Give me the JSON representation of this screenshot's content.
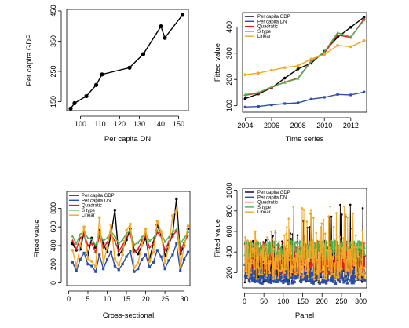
{
  "chart_data": [
    {
      "type": "line",
      "xlabel": "Per capita DN",
      "ylabel": "Per capita GDP",
      "xlim": [
        93,
        155
      ],
      "ylim": [
        120,
        455
      ],
      "xticks": [
        100,
        110,
        120,
        130,
        140,
        150
      ],
      "yticks": [
        150,
        250,
        350,
        450
      ],
      "grid": false,
      "series": [
        {
          "color": "#000000",
          "x": [
            95,
            97,
            103,
            108,
            111,
            125,
            132,
            141,
            143,
            152
          ],
          "y": [
            127,
            145,
            168,
            205,
            240,
            262,
            307,
            399,
            361,
            437
          ]
        }
      ]
    },
    {
      "type": "line",
      "xlabel": "Time series",
      "ylabel": "Fitted value",
      "xlim": [
        2003.8,
        2013.2
      ],
      "ylim": [
        75,
        455
      ],
      "xticks": [
        2004,
        2006,
        2008,
        2010,
        2012
      ],
      "yticks": [
        100,
        200,
        300,
        400
      ],
      "grid": false,
      "legend": "top-left",
      "series": [
        {
          "name": "Per capita GDP",
          "color": "#000000",
          "x": [
            2004,
            2005,
            2006,
            2007,
            2008,
            2009,
            2010,
            2011,
            2012,
            2013
          ],
          "y": [
            127,
            145,
            168,
            205,
            240,
            262,
            307,
            361,
            399,
            437
          ]
        },
        {
          "name": "Per capita DN",
          "color": "#2b4ea6",
          "x": [
            2004,
            2005,
            2006,
            2007,
            2008,
            2009,
            2010,
            2011,
            2012,
            2013
          ],
          "y": [
            95,
            97,
            103,
            108,
            111,
            125,
            132,
            143,
            141,
            152
          ]
        },
        {
          "name": "Quadratic",
          "color": "#e41a1c",
          "x": [
            2004,
            2005,
            2006,
            2007,
            2008,
            2009,
            2010,
            2011,
            2012,
            2013
          ],
          "y": [
            140,
            148,
            170,
            190,
            205,
            270,
            300,
            370,
            360,
            430
          ]
        },
        {
          "name": "S type",
          "color": "#4daf4a",
          "x": [
            2004,
            2005,
            2006,
            2007,
            2008,
            2009,
            2010,
            2011,
            2012,
            2013
          ],
          "y": [
            142,
            150,
            172,
            188,
            203,
            268,
            305,
            378,
            362,
            425
          ]
        },
        {
          "name": "Linear",
          "color": "#f5a623",
          "x": [
            2004,
            2005,
            2006,
            2007,
            2008,
            2009,
            2010,
            2011,
            2012,
            2013
          ],
          "y": [
            218,
            224,
            235,
            245,
            252,
            278,
            295,
            330,
            325,
            348
          ]
        }
      ]
    },
    {
      "type": "line",
      "xlabel": "Cross-sectional",
      "ylabel": "Fitted value",
      "xlim": [
        -0.5,
        31.5
      ],
      "ylim": [
        -30,
        980
      ],
      "xticks": [
        0,
        5,
        10,
        15,
        20,
        25,
        30
      ],
      "yticks": [
        0,
        200,
        400,
        600,
        800
      ],
      "grid": false,
      "legend": "top-left",
      "series": [
        {
          "name": "Per capita GDP",
          "color": "#000000",
          "x": [
            1,
            2,
            3,
            4,
            5,
            6,
            7,
            8,
            9,
            10,
            11,
            12,
            13,
            14,
            15,
            16,
            17,
            18,
            19,
            20,
            21,
            22,
            23,
            24,
            25,
            26,
            27,
            28,
            29,
            30,
            31
          ],
          "y": [
            420,
            350,
            360,
            540,
            300,
            480,
            380,
            560,
            420,
            330,
            510,
            780,
            300,
            350,
            460,
            580,
            350,
            310,
            400,
            480,
            250,
            430,
            620,
            510,
            290,
            410,
            520,
            900,
            310,
            400,
            580
          ]
        },
        {
          "name": "Per capita DN",
          "color": "#2b4ea6",
          "x": [
            1,
            2,
            3,
            4,
            5,
            6,
            7,
            8,
            9,
            10,
            11,
            12,
            13,
            14,
            15,
            16,
            17,
            18,
            19,
            20,
            21,
            22,
            23,
            24,
            25,
            26,
            27,
            28,
            29,
            30,
            31
          ],
          "y": [
            220,
            130,
            250,
            320,
            200,
            180,
            120,
            300,
            150,
            250,
            330,
            180,
            140,
            200,
            280,
            340,
            120,
            150,
            250,
            300,
            170,
            220,
            350,
            280,
            150,
            240,
            300,
            420,
            130,
            250,
            330
          ]
        },
        {
          "name": "Quadratic",
          "color": "#e41a1c",
          "x": [
            1,
            2,
            3,
            4,
            5,
            6,
            7,
            8,
            9,
            10,
            11,
            12,
            13,
            14,
            15,
            16,
            17,
            18,
            19,
            20,
            21,
            22,
            23,
            24,
            25,
            26,
            27,
            28,
            29,
            30,
            31
          ],
          "y": [
            450,
            360,
            480,
            520,
            400,
            420,
            330,
            500,
            380,
            430,
            520,
            450,
            340,
            400,
            490,
            530,
            330,
            360,
            450,
            500,
            380,
            420,
            540,
            500,
            350,
            440,
            500,
            560,
            340,
            430,
            510
          ]
        },
        {
          "name": "S type",
          "color": "#4daf4a",
          "x": [
            1,
            2,
            3,
            4,
            5,
            6,
            7,
            8,
            9,
            10,
            11,
            12,
            13,
            14,
            15,
            16,
            17,
            18,
            19,
            20,
            21,
            22,
            23,
            24,
            25,
            26,
            27,
            28,
            29,
            30,
            31
          ],
          "y": [
            500,
            420,
            520,
            550,
            480,
            470,
            400,
            540,
            450,
            480,
            550,
            500,
            420,
            460,
            530,
            555,
            410,
            430,
            490,
            530,
            450,
            480,
            560,
            540,
            440,
            490,
            540,
            575,
            420,
            480,
            545
          ]
        },
        {
          "name": "Linear",
          "color": "#f5a623",
          "x": [
            1,
            2,
            3,
            4,
            5,
            6,
            7,
            8,
            9,
            10,
            11,
            12,
            13,
            14,
            15,
            16,
            17,
            18,
            19,
            20,
            21,
            22,
            23,
            24,
            25,
            26,
            27,
            28,
            29,
            30,
            31
          ],
          "y": [
            350,
            180,
            400,
            600,
            260,
            230,
            170,
            700,
            210,
            380,
            620,
            260,
            190,
            300,
            560,
            630,
            160,
            210,
            400,
            580,
            230,
            330,
            660,
            550,
            210,
            380,
            720,
            780,
            170,
            390,
            610
          ]
        }
      ]
    },
    {
      "type": "line",
      "xlabel": "Panel",
      "ylabel": "Fitted value",
      "xlim": [
        -5,
        315
      ],
      "ylim": [
        50,
        1020
      ],
      "xticks": [
        0,
        50,
        100,
        150,
        200,
        250,
        300
      ],
      "yticks": [
        200,
        400,
        600,
        800,
        1000
      ],
      "grid": false,
      "legend": "top-left",
      "series": [
        {
          "name": "Per capita GDP",
          "color": "#000000",
          "x_range": [
            1,
            310
          ]
        },
        {
          "name": "Per capita DN",
          "color": "#2b4ea6",
          "x_range": [
            1,
            310
          ]
        },
        {
          "name": "Quadratic",
          "color": "#e41a1c",
          "x_range": [
            1,
            310
          ]
        },
        {
          "name": "S type",
          "color": "#4daf4a",
          "x_range": [
            1,
            310
          ]
        },
        {
          "name": "Linear",
          "color": "#f5a623",
          "x_range": [
            1,
            310
          ]
        }
      ]
    }
  ]
}
